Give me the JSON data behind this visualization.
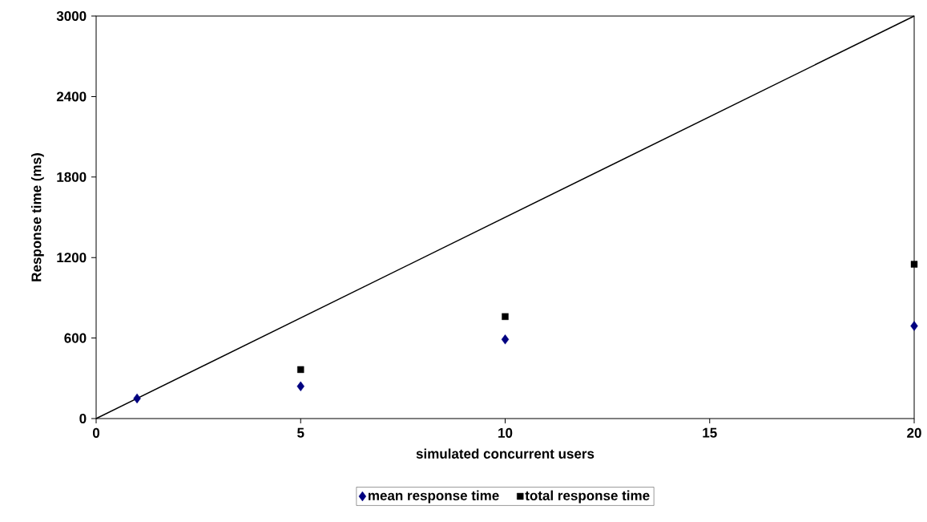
{
  "chart_data": {
    "type": "scatter",
    "xlabel": "simulated concurrent users",
    "ylabel": "Response time (ms)",
    "x": [
      1,
      5,
      10,
      20
    ],
    "series": [
      {
        "name": "mean response time",
        "color": "#000080",
        "marker": "diamond",
        "values": [
          150,
          240,
          590,
          690
        ]
      },
      {
        "name": "total response time",
        "color": "#000000",
        "marker": "square",
        "values": [
          null,
          365,
          760,
          1150
        ]
      },
      {
        "type": "line",
        "color": "#000000",
        "x": [
          0,
          20
        ],
        "values": [
          0,
          3000
        ],
        "marker": "none"
      }
    ],
    "xlim": [
      0,
      20
    ],
    "ylim": [
      0,
      3000
    ],
    "xticks": [
      0,
      5,
      10,
      15,
      20
    ],
    "yticks": [
      0,
      600,
      1200,
      1800,
      2400,
      3000
    ],
    "grid": false,
    "legend": "bottom"
  }
}
